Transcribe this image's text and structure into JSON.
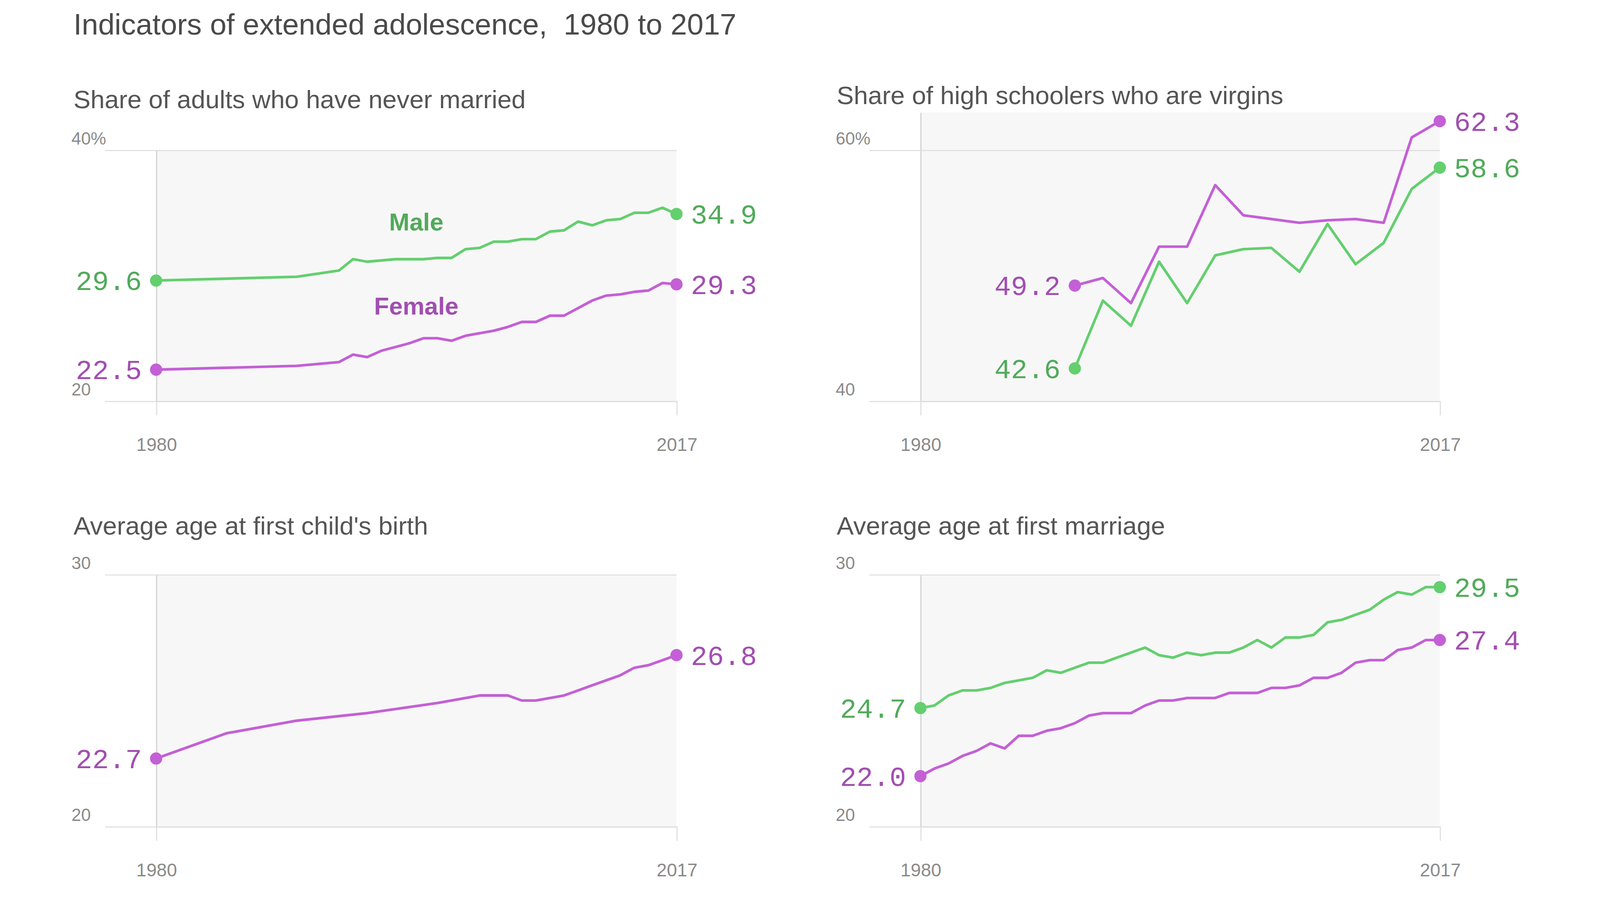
{
  "title": "Indicators of extended adolescence,  1980 to 2017",
  "chart_data": [
    {
      "type": "line",
      "title": "Share of adults who have never married",
      "x": [
        1980,
        1990,
        1993,
        1994,
        1995,
        1996,
        1997,
        1998,
        1999,
        2000,
        2001,
        2002,
        2003,
        2004,
        2005,
        2006,
        2007,
        2008,
        2009,
        2010,
        2011,
        2012,
        2013,
        2014,
        2015,
        2016,
        2017
      ],
      "xlim": [
        1980,
        2017
      ],
      "xticks": [
        1980,
        2017
      ],
      "ylim": [
        20,
        40
      ],
      "yticks": [
        20,
        {
          "value": 40,
          "label": "40%"
        }
      ],
      "grid": true,
      "data_labels": true,
      "marker": "circle",
      "series": [
        {
          "name": "Male",
          "color": "#63cf6e",
          "values": [
            29.6,
            29.9,
            30.4,
            31.3,
            31.1,
            31.2,
            31.3,
            31.3,
            31.3,
            31.4,
            31.4,
            32.1,
            32.2,
            32.7,
            32.7,
            32.9,
            32.9,
            33.5,
            33.6,
            34.3,
            34.0,
            34.4,
            34.5,
            35.0,
            35.0,
            35.4,
            34.9
          ],
          "value_labels": [
            "29.6",
            null,
            null,
            null,
            null,
            null,
            null,
            null,
            null,
            null,
            null,
            null,
            null,
            null,
            null,
            null,
            null,
            null,
            null,
            null,
            null,
            null,
            null,
            null,
            null,
            null,
            "34.9"
          ]
        },
        {
          "name": "Female",
          "color": "#c45fd6",
          "values": [
            22.5,
            22.8,
            23.1,
            23.7,
            23.5,
            24.0,
            24.3,
            24.6,
            25.0,
            25.0,
            24.8,
            25.2,
            25.4,
            25.6,
            25.9,
            26.3,
            26.3,
            26.8,
            26.8,
            27.4,
            28.0,
            28.4,
            28.5,
            28.7,
            28.8,
            29.4,
            29.3
          ],
          "value_labels": [
            "22.5",
            null,
            null,
            null,
            null,
            null,
            null,
            null,
            null,
            null,
            null,
            null,
            null,
            null,
            null,
            null,
            null,
            null,
            null,
            null,
            null,
            null,
            null,
            null,
            null,
            null,
            "29.3"
          ]
        }
      ]
    },
    {
      "type": "line",
      "title": "Share of high schoolers who are virgins",
      "x": [
        1991,
        1993,
        1995,
        1997,
        1999,
        2001,
        2003,
        2005,
        2007,
        2009,
        2011,
        2013,
        2015,
        2017
      ],
      "xlim": [
        1980,
        2017
      ],
      "xticks": [
        1980,
        2017
      ],
      "ylim": [
        40,
        63
      ],
      "yticks": [
        40,
        {
          "value": 60,
          "label": "60%"
        }
      ],
      "grid": true,
      "data_labels": true,
      "marker": "circle",
      "series": [
        {
          "color": "#c45fd6",
          "values": [
            49.2,
            49.8,
            47.8,
            52.3,
            52.3,
            57.2,
            54.8,
            54.5,
            54.2,
            54.4,
            54.5,
            54.2,
            61.0,
            62.3
          ],
          "value_labels": [
            "49.2",
            null,
            null,
            null,
            null,
            null,
            null,
            null,
            null,
            null,
            null,
            null,
            null,
            "62.3"
          ]
        },
        {
          "color": "#63cf6e",
          "values": [
            42.6,
            48.0,
            46.0,
            51.1,
            47.8,
            51.6,
            52.1,
            52.2,
            50.3,
            54.1,
            50.9,
            52.6,
            56.9,
            58.6
          ],
          "value_labels": [
            "42.6",
            null,
            null,
            null,
            null,
            null,
            null,
            null,
            null,
            null,
            null,
            null,
            null,
            "58.6"
          ]
        }
      ]
    },
    {
      "type": "line",
      "title": "Average age at first child's birth",
      "x": [
        1980,
        1985,
        1990,
        1995,
        2000,
        2001,
        2002,
        2003,
        2004,
        2005,
        2006,
        2007,
        2008,
        2009,
        2010,
        2011,
        2012,
        2013,
        2014,
        2015,
        2016,
        2017
      ],
      "xlim": [
        1980,
        2017
      ],
      "xticks": [
        1980,
        2017
      ],
      "ylim": [
        20,
        30
      ],
      "yticks": [
        20,
        30
      ],
      "grid": true,
      "data_labels": true,
      "marker": "circle",
      "series": [
        {
          "color": "#c45fd6",
          "values": [
            22.7,
            23.7,
            24.2,
            24.5,
            24.9,
            25.0,
            25.1,
            25.2,
            25.2,
            25.2,
            25.0,
            25.0,
            25.1,
            25.2,
            25.4,
            25.6,
            25.8,
            26.0,
            26.3,
            26.4,
            26.6,
            26.8
          ],
          "value_labels": [
            "22.7",
            null,
            null,
            null,
            null,
            null,
            null,
            null,
            null,
            null,
            null,
            null,
            null,
            null,
            null,
            null,
            null,
            null,
            null,
            null,
            null,
            "26.8"
          ]
        }
      ]
    },
    {
      "type": "line",
      "title": "Average age at first marriage",
      "x": [
        1980,
        1981,
        1982,
        1983,
        1984,
        1985,
        1986,
        1987,
        1988,
        1989,
        1990,
        1991,
        1992,
        1993,
        1994,
        1995,
        1996,
        1997,
        1998,
        1999,
        2000,
        2001,
        2002,
        2003,
        2004,
        2005,
        2006,
        2007,
        2008,
        2009,
        2010,
        2011,
        2012,
        2013,
        2014,
        2015,
        2016,
        2017
      ],
      "xlim": [
        1980,
        2017
      ],
      "xticks": [
        1980,
        2017
      ],
      "ylim": [
        20,
        30
      ],
      "yticks": [
        20,
        30
      ],
      "grid": true,
      "data_labels": true,
      "marker": "circle",
      "series": [
        {
          "color": "#63cf6e",
          "values": [
            24.7,
            24.8,
            25.2,
            25.4,
            25.4,
            25.5,
            25.7,
            25.8,
            25.9,
            26.2,
            26.1,
            26.3,
            26.5,
            26.5,
            26.7,
            26.9,
            27.1,
            26.8,
            26.7,
            26.9,
            26.8,
            26.9,
            26.9,
            27.1,
            27.4,
            27.1,
            27.5,
            27.5,
            27.6,
            28.1,
            28.2,
            28.4,
            28.6,
            29.0,
            29.3,
            29.2,
            29.5,
            29.5
          ],
          "value_labels": [
            "24.7",
            null,
            null,
            null,
            null,
            null,
            null,
            null,
            null,
            null,
            null,
            null,
            null,
            null,
            null,
            null,
            null,
            null,
            null,
            null,
            null,
            null,
            null,
            null,
            null,
            null,
            null,
            null,
            null,
            null,
            null,
            null,
            null,
            null,
            null,
            null,
            null,
            "29.5"
          ]
        },
        {
          "color": "#c45fd6",
          "values": [
            22.0,
            22.3,
            22.5,
            22.8,
            23.0,
            23.3,
            23.1,
            23.6,
            23.6,
            23.8,
            23.9,
            24.1,
            24.4,
            24.5,
            24.5,
            24.5,
            24.8,
            25.0,
            25.0,
            25.1,
            25.1,
            25.1,
            25.3,
            25.3,
            25.3,
            25.5,
            25.5,
            25.6,
            25.9,
            25.9,
            26.1,
            26.5,
            26.6,
            26.6,
            27.0,
            27.1,
            27.4,
            27.4
          ],
          "value_labels": [
            "22.0",
            null,
            null,
            null,
            null,
            null,
            null,
            null,
            null,
            null,
            null,
            null,
            null,
            null,
            null,
            null,
            null,
            null,
            null,
            null,
            null,
            null,
            null,
            null,
            null,
            null,
            null,
            null,
            null,
            null,
            null,
            null,
            null,
            null,
            null,
            null,
            null,
            "27.4"
          ]
        }
      ]
    }
  ]
}
